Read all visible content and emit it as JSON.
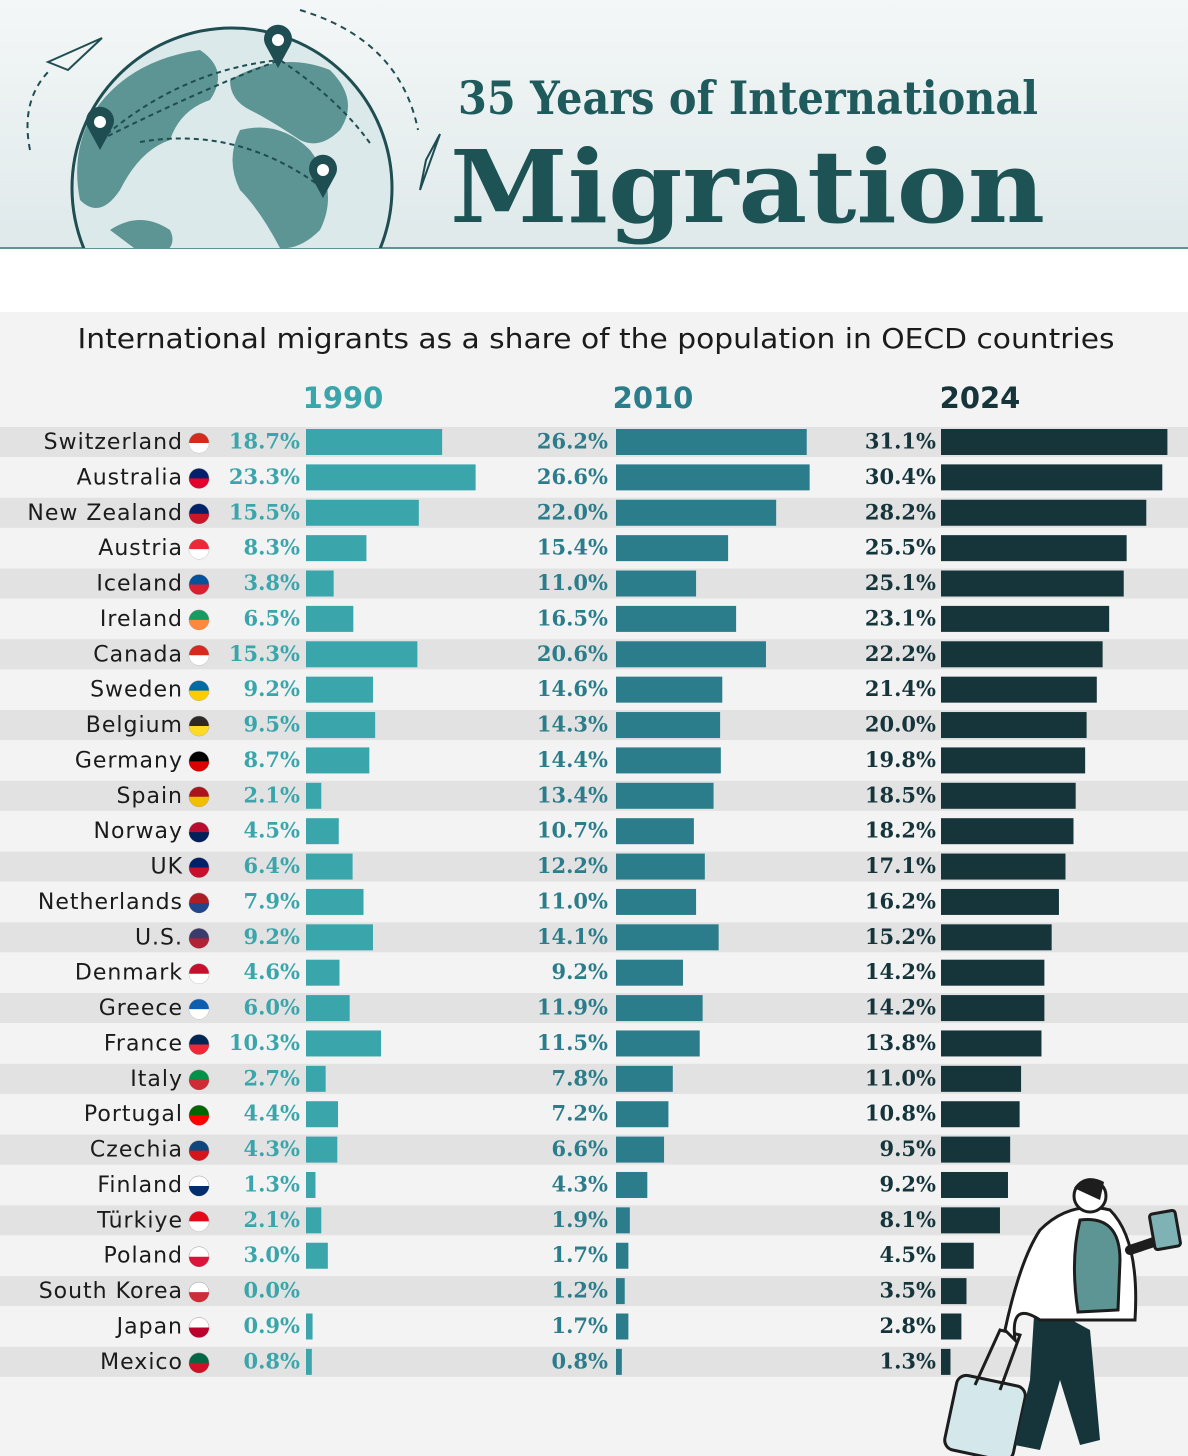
{
  "chart_data": {
    "type": "bar",
    "orientation": "horizontal",
    "kicker": "35 Years of International",
    "title": "Migration",
    "subtitle": "International migrants as a share of the population in OECD countries",
    "categories": [
      "Switzerland",
      "Australia",
      "New Zealand",
      "Austria",
      "Iceland",
      "Ireland",
      "Canada",
      "Sweden",
      "Belgium",
      "Germany",
      "Spain",
      "Norway",
      "UK",
      "Netherlands",
      "U.S.",
      "Denmark",
      "Greece",
      "France",
      "Italy",
      "Portugal",
      "Czechia",
      "Finland",
      "Türkiye",
      "Poland",
      "South Korea",
      "Japan",
      "Mexico"
    ],
    "series": [
      {
        "name": "1990",
        "color": "#3aa6ab",
        "values": [
          18.7,
          23.3,
          15.5,
          8.3,
          3.8,
          6.5,
          15.3,
          9.2,
          9.5,
          8.7,
          2.1,
          4.5,
          6.4,
          7.9,
          9.2,
          4.6,
          6.0,
          10.3,
          2.7,
          4.4,
          4.3,
          1.3,
          2.1,
          3.0,
          0.0,
          0.9,
          0.8
        ],
        "value_labels": [
          "18.7%",
          "23.3%",
          "15.5%",
          "8.3%",
          "3.8%",
          "6.5%",
          "15.3%",
          "9.2%",
          "9.5%",
          "8.7%",
          "2.1%",
          "4.5%",
          "6.4%",
          "7.9%",
          "9.2%",
          "4.6%",
          "6.0%",
          "10.3%",
          "2.7%",
          "4.4%",
          "4.3%",
          "1.3%",
          "2.1%",
          "3.0%",
          "0.0%",
          "0.9%",
          "0.8%"
        ]
      },
      {
        "name": "2010",
        "color": "#2b7d8b",
        "values": [
          26.2,
          26.6,
          22.0,
          15.4,
          11.0,
          16.5,
          20.6,
          14.6,
          14.3,
          14.4,
          13.4,
          10.7,
          12.2,
          11.0,
          14.1,
          9.2,
          11.9,
          11.5,
          7.8,
          7.2,
          6.6,
          4.3,
          1.9,
          1.7,
          1.2,
          1.7,
          0.8
        ],
        "value_labels": [
          "26.2%",
          "26.6%",
          "22.0%",
          "15.4%",
          "11.0%",
          "16.5%",
          "20.6%",
          "14.6%",
          "14.3%",
          "14.4%",
          "13.4%",
          "10.7%",
          "12.2%",
          "11.0%",
          "14.1%",
          "9.2%",
          "11.9%",
          "11.5%",
          "7.8%",
          "7.2%",
          "6.6%",
          "4.3%",
          "1.9%",
          "1.7%",
          "1.2%",
          "1.7%",
          "0.8%"
        ]
      },
      {
        "name": "2024",
        "color": "#15353b",
        "values": [
          31.1,
          30.4,
          28.2,
          25.5,
          25.1,
          23.1,
          22.2,
          21.4,
          20.0,
          19.8,
          18.5,
          18.2,
          17.1,
          16.2,
          15.2,
          14.2,
          14.2,
          13.8,
          11.0,
          10.8,
          9.5,
          9.2,
          8.1,
          4.5,
          3.5,
          2.8,
          1.3
        ],
        "value_labels": [
          "31.1%",
          "30.4%",
          "28.2%",
          "25.5%",
          "25.1%",
          "23.1%",
          "22.2%",
          "21.4%",
          "20.0%",
          "19.8%",
          "18.5%",
          "18.2%",
          "17.1%",
          "16.2%",
          "15.2%",
          "14.2%",
          "14.2%",
          "13.8%",
          "11.0%",
          "10.8%",
          "9.5%",
          "9.2%",
          "8.1%",
          "4.5%",
          "3.5%",
          "2.8%",
          "1.3%"
        ]
      }
    ]
  }
}
